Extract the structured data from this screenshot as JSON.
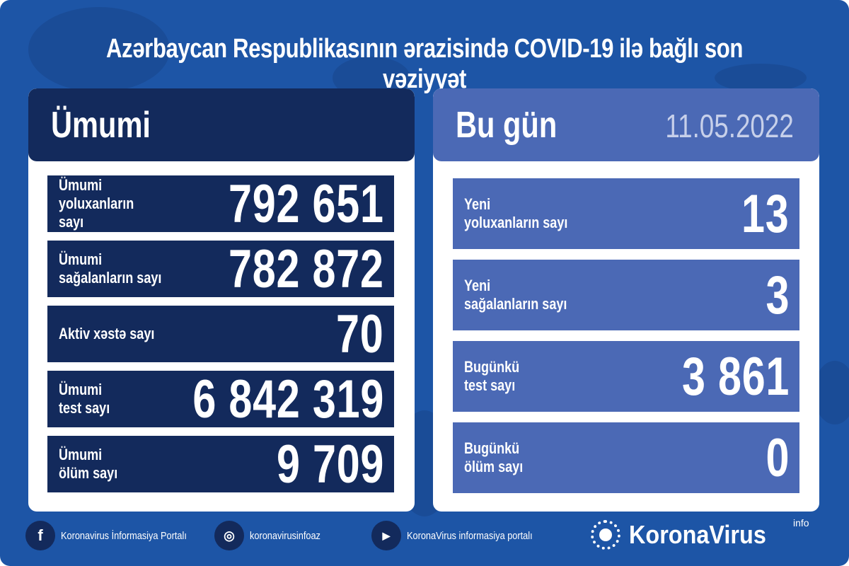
{
  "title": "Azərbaycan Respublikasının ərazisində COVID-19 ilə bağlı son vəziyyət",
  "colors": {
    "background": "#1d55a6",
    "total_panel": "#132a5c",
    "today_panel": "#4b69b5"
  },
  "total": {
    "heading": "Ümumi",
    "rows": [
      {
        "label": "Ümumi\nyoluxanların sayı",
        "value": "792 651"
      },
      {
        "label": "Ümumi\nsağalanların sayı",
        "value": "782 872"
      },
      {
        "label": "Aktiv xəstə sayı",
        "value": "70"
      },
      {
        "label": "Ümumi\ntest sayı",
        "value": "6 842 319"
      },
      {
        "label": "Ümumi\nölüm sayı",
        "value": "9 709"
      }
    ]
  },
  "today": {
    "heading": "Bu gün",
    "date": "11.05.2022",
    "rows": [
      {
        "label": "Yeni\nyoluxanların sayı",
        "value": "13"
      },
      {
        "label": "Yeni\nsağalanların sayı",
        "value": "3"
      },
      {
        "label": "Bugünkü\ntest sayı",
        "value": "3 861"
      },
      {
        "label": "Bugünkü\nölüm sayı",
        "value": "0"
      }
    ]
  },
  "footer": {
    "items": [
      {
        "icon": "facebook-icon",
        "text": "Koronavirus İnformasiya Portalı"
      },
      {
        "icon": "instagram-icon",
        "text": "koronavirusinfoaz"
      },
      {
        "icon": "youtube-icon",
        "text": "KoronaVirus informasiya portalı"
      }
    ],
    "logo": "KoronaVirus",
    "logo_sup": "info"
  }
}
